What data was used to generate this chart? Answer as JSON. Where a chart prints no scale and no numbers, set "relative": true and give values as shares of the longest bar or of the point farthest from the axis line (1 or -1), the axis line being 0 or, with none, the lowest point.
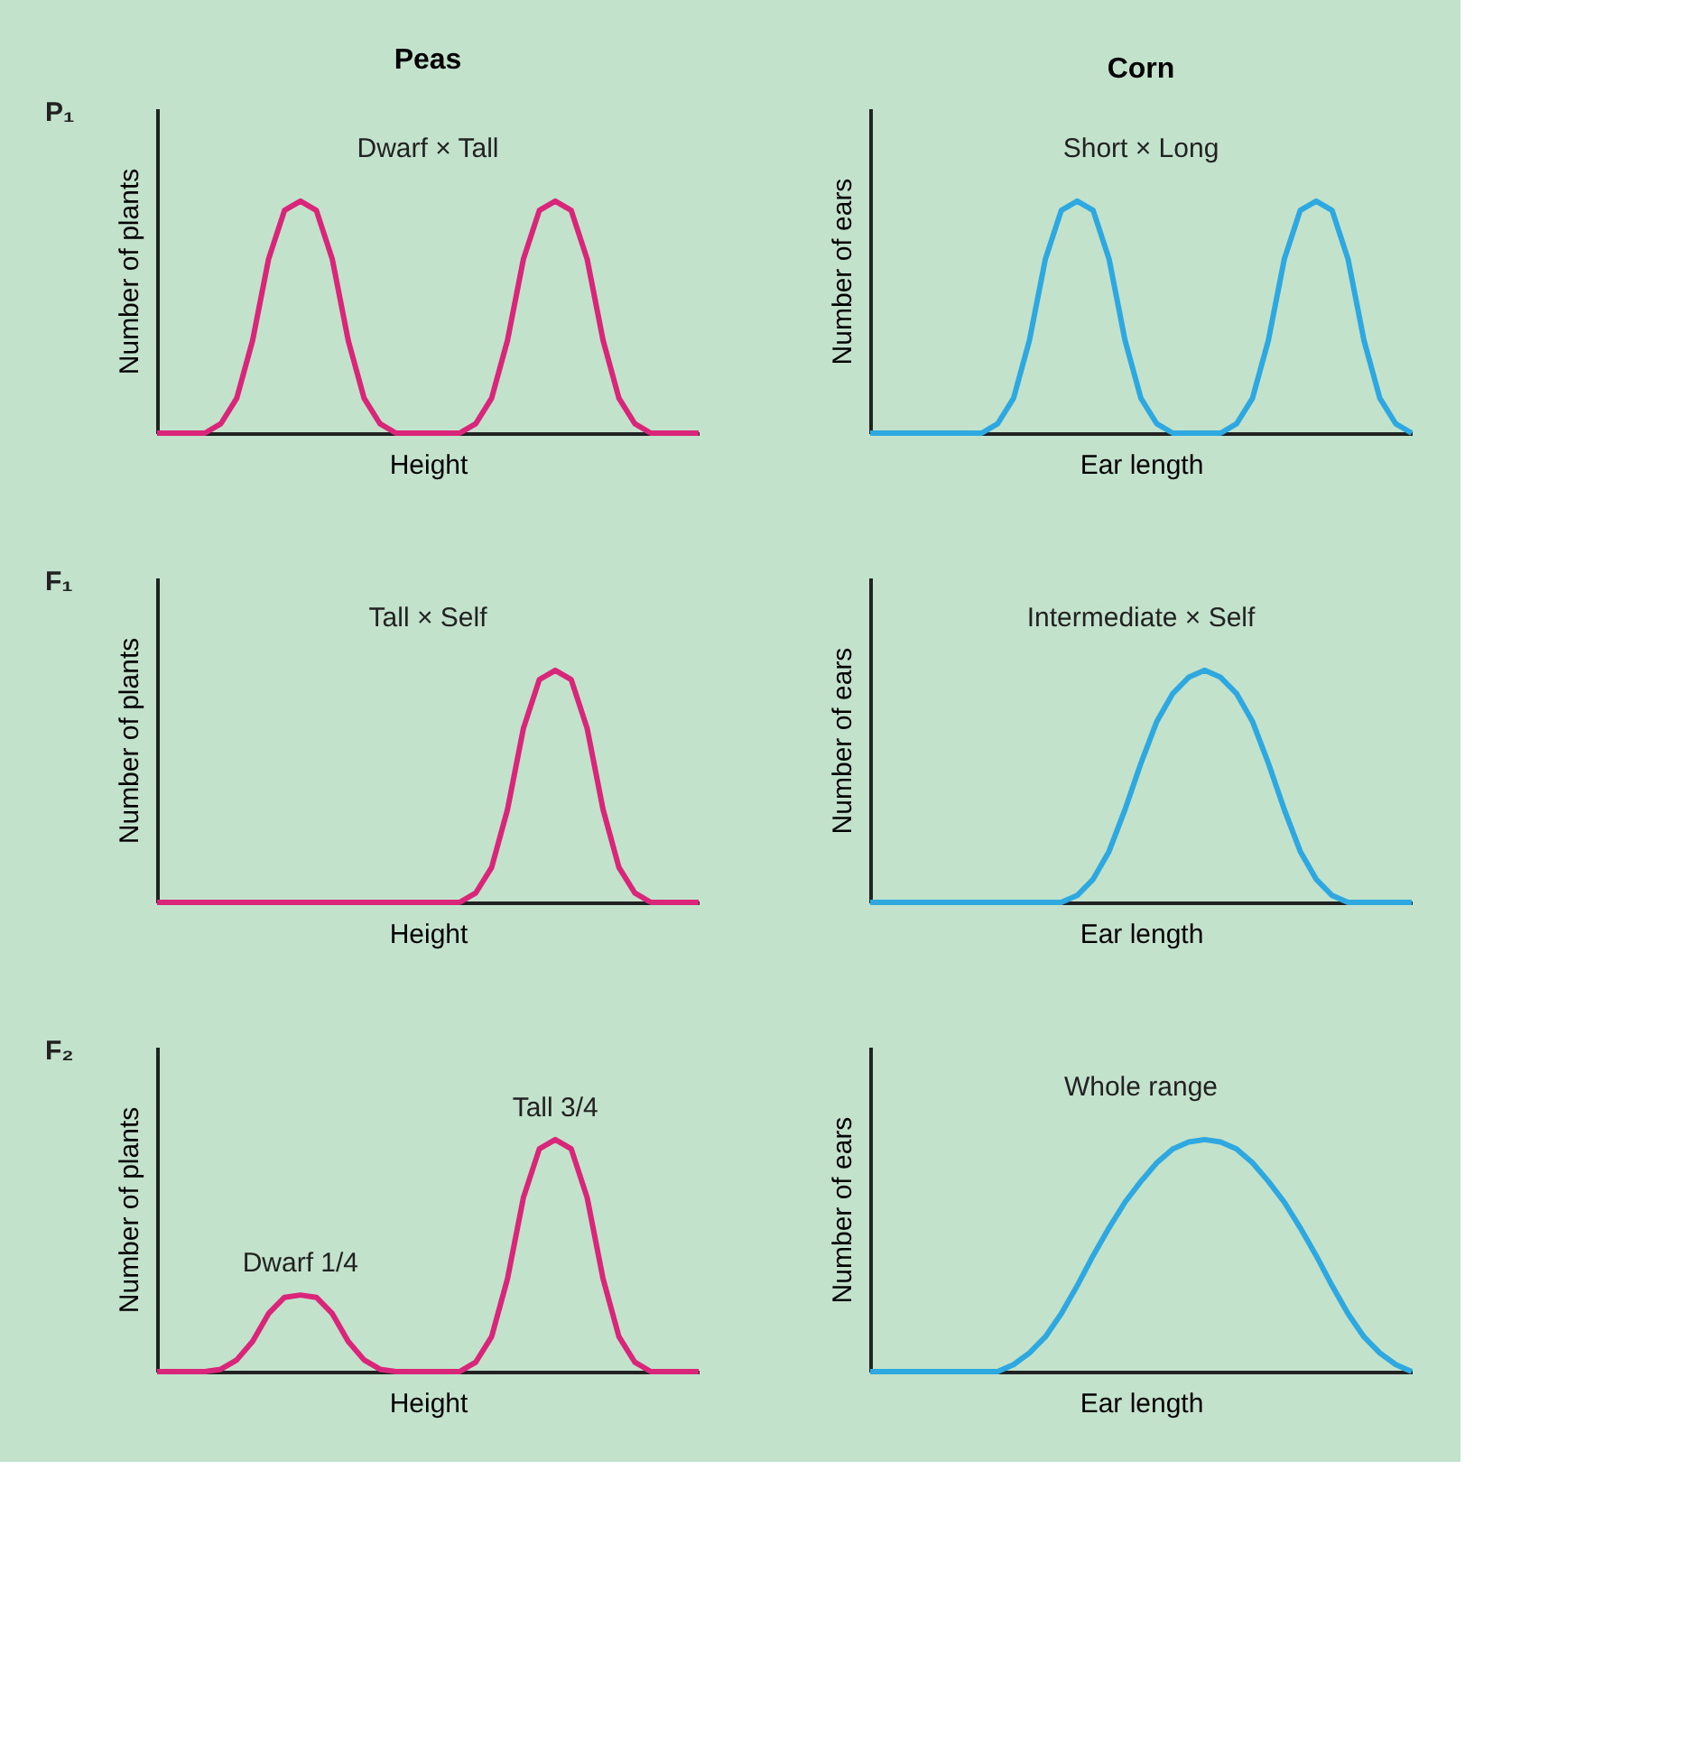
{
  "chart_data": [
    {
      "type": "line",
      "title": "Peas",
      "subtitle": "P₁",
      "xlabel": "Height",
      "ylabel": "Number of plants",
      "relative": true,
      "annotations": [
        "Dwarf × Tall"
      ],
      "categories": [
        null,
        null,
        null,
        null,
        null,
        null,
        null,
        null,
        null,
        null,
        null,
        null,
        null,
        null,
        null,
        null,
        null,
        null,
        null,
        null,
        null,
        null,
        null,
        null,
        null,
        null,
        null,
        null,
        null,
        null,
        null,
        null,
        null,
        null,
        null
      ],
      "series": [
        {
          "color": "#d9257a",
          "values": [
            0,
            0,
            0,
            0,
            0.04,
            0.15,
            0.4,
            0.75,
            0.96,
            1,
            0.96,
            0.75,
            0.4,
            0.15,
            0.04,
            0,
            0,
            0,
            0,
            0,
            0.04,
            0.15,
            0.4,
            0.75,
            0.96,
            1,
            0.96,
            0.75,
            0.4,
            0.15,
            0.04,
            0,
            0,
            0,
            0
          ]
        }
      ]
    },
    {
      "type": "line",
      "title": "Corn",
      "xlabel": "Ear length",
      "ylabel": "Number of ears",
      "relative": true,
      "annotations": [
        "Short × Long"
      ],
      "categories": [
        null,
        null,
        null,
        null,
        null,
        null,
        null,
        null,
        null,
        null,
        null,
        null,
        null,
        null,
        null,
        null,
        null,
        null,
        null,
        null,
        null,
        null,
        null,
        null,
        null,
        null,
        null,
        null,
        null,
        null,
        null,
        null,
        null,
        null,
        null
      ],
      "series": [
        {
          "color": "#2ea8e0",
          "values": [
            0,
            0,
            0,
            0,
            0,
            0,
            0,
            0,
            0.04,
            0.15,
            0.4,
            0.75,
            0.96,
            1,
            0.96,
            0.75,
            0.4,
            0.15,
            0.04,
            0,
            0,
            0,
            0,
            0.04,
            0.15,
            0.4,
            0.75,
            0.96,
            1,
            0.96,
            0.75,
            0.4,
            0.15,
            0.04,
            0
          ]
        }
      ]
    },
    {
      "type": "line",
      "subtitle": "F₁",
      "xlabel": "Height",
      "ylabel": "Number of plants",
      "relative": true,
      "annotations": [
        "Tall × Self"
      ],
      "categories": [
        null,
        null,
        null,
        null,
        null,
        null,
        null,
        null,
        null,
        null,
        null,
        null,
        null,
        null,
        null,
        null,
        null,
        null,
        null,
        null,
        null,
        null,
        null,
        null,
        null,
        null,
        null,
        null,
        null,
        null,
        null,
        null,
        null,
        null,
        null
      ],
      "series": [
        {
          "color": "#d9257a",
          "values": [
            0,
            0,
            0,
            0,
            0,
            0,
            0,
            0,
            0,
            0,
            0,
            0,
            0,
            0,
            0,
            0,
            0,
            0,
            0,
            0,
            0.04,
            0.15,
            0.4,
            0.75,
            0.96,
            1,
            0.96,
            0.75,
            0.4,
            0.15,
            0.04,
            0,
            0,
            0,
            0
          ]
        }
      ]
    },
    {
      "type": "line",
      "xlabel": "Ear length",
      "ylabel": "Number of ears",
      "relative": true,
      "annotations": [
        "Intermediate × Self"
      ],
      "categories": [
        null,
        null,
        null,
        null,
        null,
        null,
        null,
        null,
        null,
        null,
        null,
        null,
        null,
        null,
        null,
        null,
        null,
        null,
        null,
        null,
        null,
        null,
        null,
        null,
        null,
        null,
        null,
        null,
        null,
        null,
        null,
        null,
        null,
        null,
        null
      ],
      "series": [
        {
          "color": "#2ea8e0",
          "values": [
            0,
            0,
            0,
            0,
            0,
            0,
            0,
            0,
            0,
            0,
            0,
            0,
            0,
            0.03,
            0.1,
            0.22,
            0.4,
            0.6,
            0.78,
            0.9,
            0.97,
            1,
            0.97,
            0.9,
            0.78,
            0.6,
            0.4,
            0.22,
            0.1,
            0.03,
            0,
            0,
            0,
            0,
            0
          ]
        }
      ]
    },
    {
      "type": "line",
      "subtitle": "F₂",
      "xlabel": "Height",
      "ylabel": "Number of plants",
      "relative": true,
      "annotations": [
        "Dwarf 1/4",
        "Tall 3/4"
      ],
      "categories": [
        null,
        null,
        null,
        null,
        null,
        null,
        null,
        null,
        null,
        null,
        null,
        null,
        null,
        null,
        null,
        null,
        null,
        null,
        null,
        null,
        null,
        null,
        null,
        null,
        null,
        null,
        null,
        null,
        null,
        null,
        null,
        null,
        null,
        null,
        null
      ],
      "series": [
        {
          "color": "#d9257a",
          "values": [
            0,
            0,
            0,
            0,
            0.01,
            0.05,
            0.13,
            0.25,
            0.32,
            0.33,
            0.32,
            0.25,
            0.13,
            0.05,
            0.01,
            0,
            0,
            0,
            0,
            0,
            0.04,
            0.15,
            0.4,
            0.75,
            0.96,
            1,
            0.96,
            0.75,
            0.4,
            0.15,
            0.04,
            0,
            0,
            0,
            0
          ]
        }
      ]
    },
    {
      "type": "line",
      "xlabel": "Ear length",
      "ylabel": "Number of ears",
      "relative": true,
      "annotations": [
        "Whole range"
      ],
      "categories": [
        null,
        null,
        null,
        null,
        null,
        null,
        null,
        null,
        null,
        null,
        null,
        null,
        null,
        null,
        null,
        null,
        null,
        null,
        null,
        null,
        null,
        null,
        null,
        null,
        null,
        null,
        null,
        null,
        null,
        null,
        null,
        null,
        null,
        null,
        null
      ],
      "series": [
        {
          "color": "#2ea8e0",
          "values": [
            0,
            0,
            0,
            0,
            0,
            0,
            0,
            0,
            0,
            0.03,
            0.08,
            0.15,
            0.25,
            0.37,
            0.5,
            0.62,
            0.73,
            0.82,
            0.9,
            0.96,
            0.99,
            1,
            0.99,
            0.96,
            0.9,
            0.82,
            0.73,
            0.62,
            0.5,
            0.37,
            0.25,
            0.15,
            0.08,
            0.03,
            0
          ]
        }
      ]
    }
  ]
}
